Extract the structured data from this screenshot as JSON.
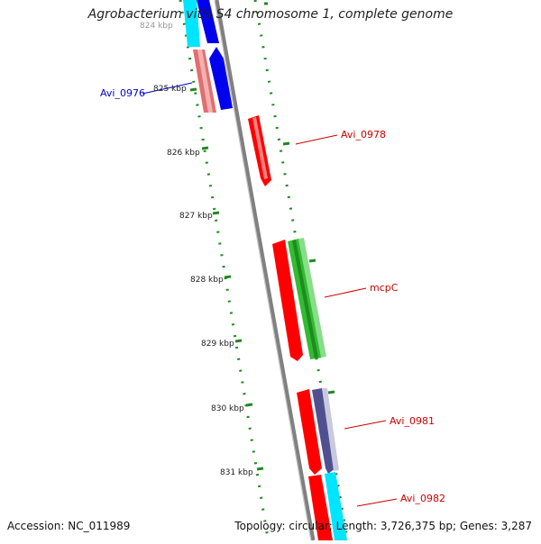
{
  "title": "Agrobacterium vitis S4 chromosome 1, complete genome",
  "accession": "Accession: NC_011989",
  "summary": "Topology: circular; Length: 3,726,375 bp; Genes: 3,287",
  "ticks": [
    "824 kbp",
    "825 kbp",
    "826 kbp",
    "827 kbp",
    "828 kbp",
    "829 kbp",
    "830 kbp",
    "831 kbp"
  ],
  "gene_labels": [
    {
      "text": "Avi_0976",
      "color": "#0000cc"
    },
    {
      "text": "Avi_0978",
      "color": "#cc0000"
    },
    {
      "text": "mcpC",
      "color": "#cc0000"
    },
    {
      "text": "Avi_0981",
      "color": "#cc0000"
    },
    {
      "text": "Avi_0982",
      "color": "#cc0000"
    }
  ],
  "colors": {
    "backbone": "#7f7f7f",
    "gc_skew": "#1f8a1f",
    "red": "#ff0000",
    "green": "#33bb33",
    "blue": "#0000ee",
    "cyan": "#00e5ff",
    "salmon": "#e07070",
    "slate": "#505090"
  }
}
